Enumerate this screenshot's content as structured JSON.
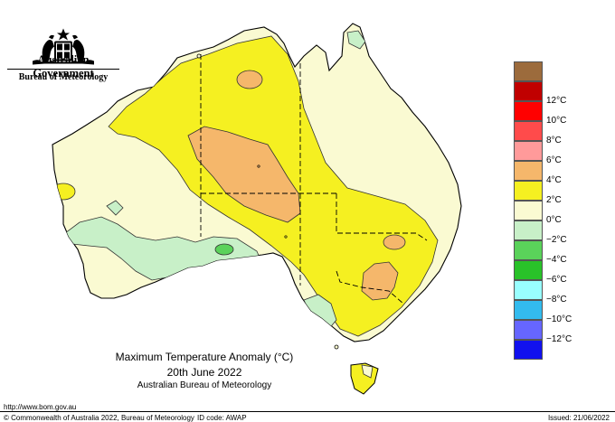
{
  "header": {
    "government": "Australian Government",
    "bureau": "Bureau of Meteorology"
  },
  "caption": {
    "title": "Maximum Temperature Anomaly (°C)",
    "date": "20th June 2022",
    "source": "Australian Bureau of Meteorology"
  },
  "footer": {
    "url": "http://www.bom.gov.au",
    "copyright": "© Commonwealth of Australia 2022, Bureau of Meteorology",
    "id_code": "ID code: AWAP",
    "issued": "Issued: 21/06/2022"
  },
  "legend": [
    {
      "label": "",
      "color": "#9c6b3c"
    },
    {
      "label": "12°C",
      "color": "#c00000"
    },
    {
      "label": "10°C",
      "color": "#ff0000"
    },
    {
      "label": "8°C",
      "color": "#ff4b4b"
    },
    {
      "label": "6°C",
      "color": "#ff9a9a"
    },
    {
      "label": "4°C",
      "color": "#f5b76b"
    },
    {
      "label": "2°C",
      "color": "#f5f021"
    },
    {
      "label": "0°C",
      "color": "#fafad2"
    },
    {
      "label": "−2°C",
      "color": "#c8f0c8"
    },
    {
      "label": "−4°C",
      "color": "#5ad25a"
    },
    {
      "label": "−6°C",
      "color": "#29c229"
    },
    {
      "label": "−8°C",
      "color": "#99ffff"
    },
    {
      "label": "−10°C",
      "color": "#33bbee"
    },
    {
      "label": "−12°C",
      "color": "#6666ff"
    },
    {
      "label": "",
      "color": "#1111ee"
    }
  ]
}
